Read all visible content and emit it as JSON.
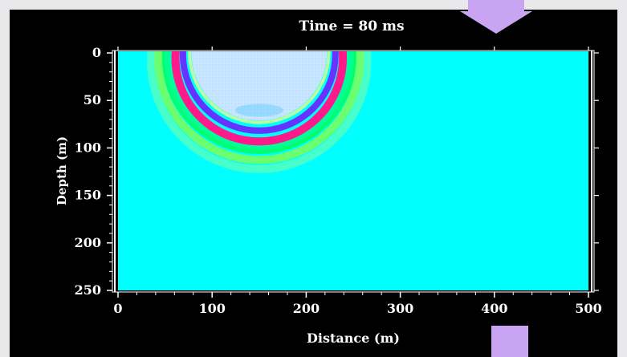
{
  "chart_data": {
    "type": "heatmap",
    "title": "Time = 80 ms",
    "xlabel": "Distance (m)",
    "ylabel": "Depth (m)",
    "xlim": [
      0,
      500
    ],
    "ylim": [
      250,
      0
    ],
    "x_ticks": [
      "0",
      "100",
      "200",
      "300",
      "400",
      "500"
    ],
    "y_ticks": [
      "0",
      "50",
      "100",
      "150",
      "200",
      "250"
    ],
    "x_tick_values": [
      0,
      100,
      200,
      300,
      400,
      500
    ],
    "y_tick_values": [
      0,
      50,
      100,
      150,
      200,
      250
    ],
    "background_color": "#00ffff",
    "wavefront": {
      "source_x": 150,
      "source_depth": 0,
      "inner_radius": 75,
      "outer_radius": 105,
      "band_colors": [
        "#c8e6ff",
        "#6633ff",
        "#ff1a8c",
        "#00e5ff",
        "#00ff66",
        "#ccff33"
      ]
    }
  },
  "colors": {
    "frame": "#000000",
    "page": "#e9e9ec",
    "accent_arrow": "#c9a4f2",
    "text": "#ffffff"
  }
}
